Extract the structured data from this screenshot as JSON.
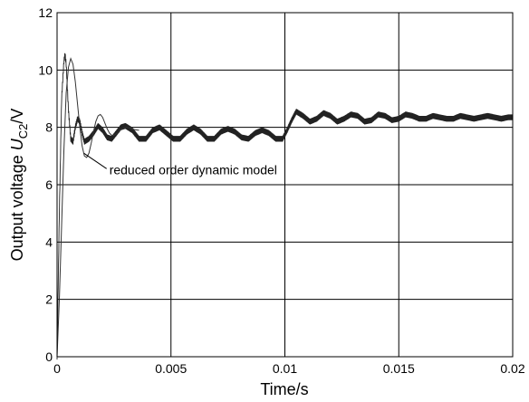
{
  "chart_data": {
    "type": "line",
    "title": "",
    "xlabel": "Time/s",
    "ylabel": {
      "prefix": "Output voltage ",
      "var": "U",
      "sub": "C2",
      "suffix": "/V"
    },
    "xlim": [
      0,
      0.02
    ],
    "ylim": [
      0,
      12
    ],
    "grid": true,
    "xticks": [
      0,
      0.005,
      0.01,
      0.015,
      0.02
    ],
    "xtick_labels": [
      "0",
      "0.005",
      "0.01",
      "0.015",
      "0.02"
    ],
    "yticks": [
      0,
      2,
      4,
      6,
      8,
      10,
      12
    ],
    "ytick_labels": [
      "0",
      "2",
      "4",
      "6",
      "8",
      "10",
      "12"
    ],
    "annotation": {
      "text": "reduced order dynamic model",
      "x": 0.0013,
      "y": 7.0
    },
    "series": [
      {
        "style": "ripple",
        "ripple_amplitude": 0.1,
        "x": [
          0,
          0.0001,
          0.0002,
          0.0003,
          0.00035,
          0.0004,
          0.00045,
          0.0005,
          0.0006,
          0.0007,
          0.0008,
          0.0009,
          0.001,
          0.0011,
          0.0012,
          0.0014,
          0.0016,
          0.0018,
          0.002,
          0.0022,
          0.0024,
          0.0026,
          0.0028,
          0.003,
          0.0033,
          0.0036,
          0.0039,
          0.0042,
          0.0045,
          0.0048,
          0.0051,
          0.0054,
          0.0057,
          0.006,
          0.0063,
          0.0066,
          0.0069,
          0.0072,
          0.0075,
          0.0078,
          0.0081,
          0.0084,
          0.0087,
          0.009,
          0.0093,
          0.0096,
          0.0099,
          0.0101,
          0.0103,
          0.0105,
          0.0108,
          0.0111,
          0.0114,
          0.0117,
          0.012,
          0.0123,
          0.0126,
          0.0129,
          0.0132,
          0.0135,
          0.0138,
          0.0141,
          0.0144,
          0.0147,
          0.015,
          0.0153,
          0.0156,
          0.0159,
          0.0162,
          0.0165,
          0.0168,
          0.0171,
          0.0174,
          0.0177,
          0.018,
          0.0183,
          0.0186,
          0.0189,
          0.0192,
          0.0195,
          0.0198,
          0.02
        ],
        "y": [
          0,
          5.0,
          9.0,
          10.3,
          10.55,
          10.2,
          9.4,
          8.6,
          7.6,
          7.5,
          8.0,
          8.3,
          8.2,
          7.8,
          7.5,
          7.6,
          7.8,
          8.05,
          7.9,
          7.65,
          7.6,
          7.8,
          8.0,
          8.05,
          7.9,
          7.6,
          7.6,
          7.9,
          8.0,
          7.8,
          7.6,
          7.6,
          7.85,
          8.0,
          7.85,
          7.6,
          7.6,
          7.85,
          7.95,
          7.85,
          7.65,
          7.6,
          7.8,
          7.9,
          7.8,
          7.6,
          7.6,
          7.9,
          8.25,
          8.55,
          8.4,
          8.2,
          8.3,
          8.5,
          8.4,
          8.2,
          8.3,
          8.45,
          8.4,
          8.2,
          8.25,
          8.45,
          8.4,
          8.25,
          8.3,
          8.45,
          8.4,
          8.3,
          8.3,
          8.4,
          8.35,
          8.3,
          8.3,
          8.4,
          8.35,
          8.3,
          8.35,
          8.4,
          8.35,
          8.3,
          8.35,
          8.35
        ]
      },
      {
        "style": "smooth",
        "x": [
          0,
          0.0001,
          0.0002,
          0.0003,
          0.0004,
          0.0005,
          0.0006,
          0.0007,
          0.0008,
          0.0009,
          0.001,
          0.0011,
          0.0012,
          0.0013,
          0.0014,
          0.0015,
          0.0016,
          0.0017,
          0.0018,
          0.0019,
          0.002,
          0.0021,
          0.0022,
          0.0023,
          0.0024,
          0.0025,
          0.0026,
          0.0027,
          0.0028,
          0.003,
          0.0032,
          0.0034,
          0.0036
        ],
        "y": [
          0,
          2.0,
          4.6,
          7.2,
          9.2,
          10.1,
          10.4,
          10.2,
          9.6,
          8.8,
          8.0,
          7.35,
          7.0,
          6.95,
          7.1,
          7.45,
          7.85,
          8.2,
          8.4,
          8.45,
          8.35,
          8.15,
          7.95,
          7.8,
          7.72,
          7.72,
          7.78,
          7.86,
          7.93,
          8.0,
          7.98,
          7.92,
          7.9
        ]
      }
    ]
  }
}
